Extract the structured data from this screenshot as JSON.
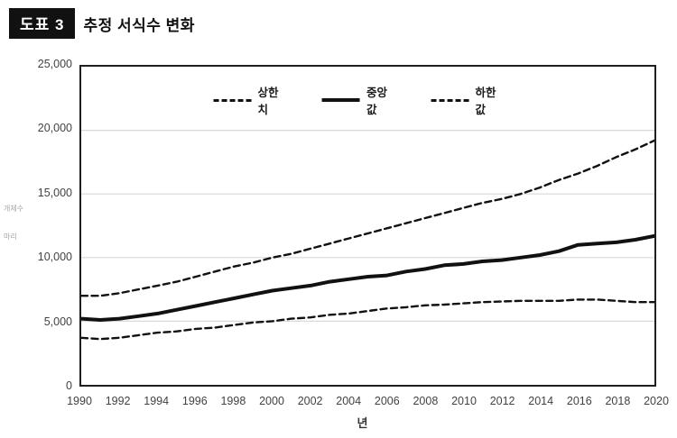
{
  "header": {
    "badge": "도표 3",
    "title": "추정 서식수 변화"
  },
  "legend": {
    "items": [
      {
        "label": "상한치",
        "style": "dashed"
      },
      {
        "label": "중앙값",
        "style": "solid"
      },
      {
        "label": "하한값",
        "style": "dashed"
      }
    ]
  },
  "y_axis": {
    "title_line1": "개체수",
    "title_line2": "마리",
    "ticks": [
      "0",
      "5,000",
      "10,000",
      "15,000",
      "20,000",
      "25,000"
    ]
  },
  "x_axis": {
    "label": "년",
    "ticks": [
      "1990",
      "1992",
      "1994",
      "1996",
      "1998",
      "2000",
      "2002",
      "2004",
      "2006",
      "2008",
      "2010",
      "2012",
      "2014",
      "2016",
      "2018",
      "2020"
    ]
  },
  "colors": {
    "line": "#111111",
    "grid": "#d9d9d9",
    "frame": "#1f1f1f",
    "tick_text": "#424242",
    "axis_title_text": "#a6a6a6",
    "badge_bg": "#111111",
    "badge_text": "#ffffff"
  },
  "chart_data": {
    "type": "line",
    "title": "추정 서식수 변화",
    "xlabel": "년",
    "ylabel": "개체수 (마리)",
    "xlim": [
      1990,
      2020
    ],
    "ylim": [
      0,
      25000
    ],
    "y_gridlines": [
      5000,
      10000,
      15000,
      20000
    ],
    "grid": "horizontal",
    "legend_position": "top-center",
    "x": [
      1990,
      1991,
      1992,
      1993,
      1994,
      1995,
      1996,
      1997,
      1998,
      1999,
      2000,
      2001,
      2002,
      2003,
      2004,
      2005,
      2006,
      2007,
      2008,
      2009,
      2010,
      2011,
      2012,
      2013,
      2014,
      2015,
      2016,
      2017,
      2018,
      2019,
      2020
    ],
    "series": [
      {
        "name": "상한치",
        "style": "dashed",
        "values": [
          7000,
          7000,
          7200,
          7500,
          7800,
          8100,
          8500,
          8900,
          9300,
          9600,
          10000,
          10300,
          10700,
          11100,
          11500,
          11900,
          12300,
          12700,
          13100,
          13500,
          13900,
          14300,
          14600,
          15000,
          15500,
          16100,
          16600,
          17200,
          17900,
          18500,
          19200
        ]
      },
      {
        "name": "중앙값",
        "style": "solid",
        "values": [
          5200,
          5100,
          5200,
          5400,
          5600,
          5900,
          6200,
          6500,
          6800,
          7100,
          7400,
          7600,
          7800,
          8100,
          8300,
          8500,
          8600,
          8900,
          9100,
          9400,
          9500,
          9700,
          9800,
          10000,
          10200,
          10500,
          11000,
          11100,
          11200,
          11400,
          11700
        ]
      },
      {
        "name": "하한값",
        "style": "dashed",
        "values": [
          3700,
          3600,
          3700,
          3900,
          4100,
          4200,
          4400,
          4500,
          4700,
          4900,
          5000,
          5200,
          5300,
          5500,
          5600,
          5800,
          6000,
          6100,
          6250,
          6300,
          6400,
          6500,
          6550,
          6600,
          6600,
          6600,
          6700,
          6700,
          6600,
          6500,
          6500
        ]
      }
    ]
  }
}
